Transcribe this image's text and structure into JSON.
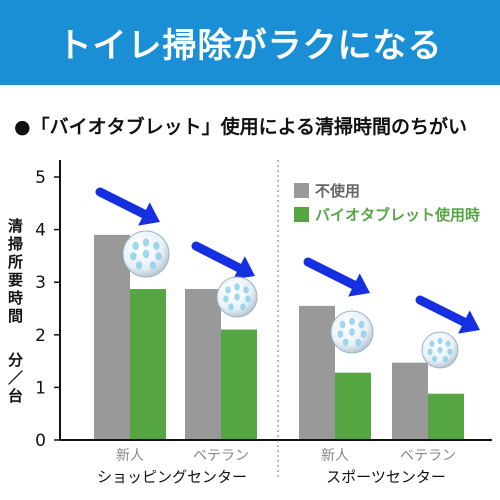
{
  "banner": {
    "title": "トイレ掃除がラクになる"
  },
  "subtitle": "●「バイオタブレット」使用による清掃時間のちがい",
  "chart_data": {
    "type": "bar",
    "ylabel": "清掃所要時間",
    "yunit": "分／台",
    "ylim": [
      0,
      5
    ],
    "yticks": [
      0,
      1,
      2,
      3,
      4,
      5
    ],
    "categories": [
      "新人",
      "ベテラン",
      "新人",
      "ベテラン"
    ],
    "groups": [
      {
        "label": "ショッピングセンター",
        "categories": [
          "新人",
          "ベテラン"
        ]
      },
      {
        "label": "スポーツセンター",
        "categories": [
          "新人",
          "ベテラン"
        ]
      }
    ],
    "series": [
      {
        "name": "不使用",
        "color": "#999999",
        "values": [
          3.9,
          2.87,
          2.55,
          1.47
        ]
      },
      {
        "name": "バイオタブレット使用時",
        "color": "#56a543",
        "values": [
          2.87,
          2.1,
          1.28,
          0.88
        ]
      }
    ],
    "legend_position": "top-right",
    "legend_text_colors": [
      "#666666",
      "#56a543"
    ],
    "icons": [
      "blue-arrow-icon",
      "tablet-ball-icon"
    ]
  }
}
